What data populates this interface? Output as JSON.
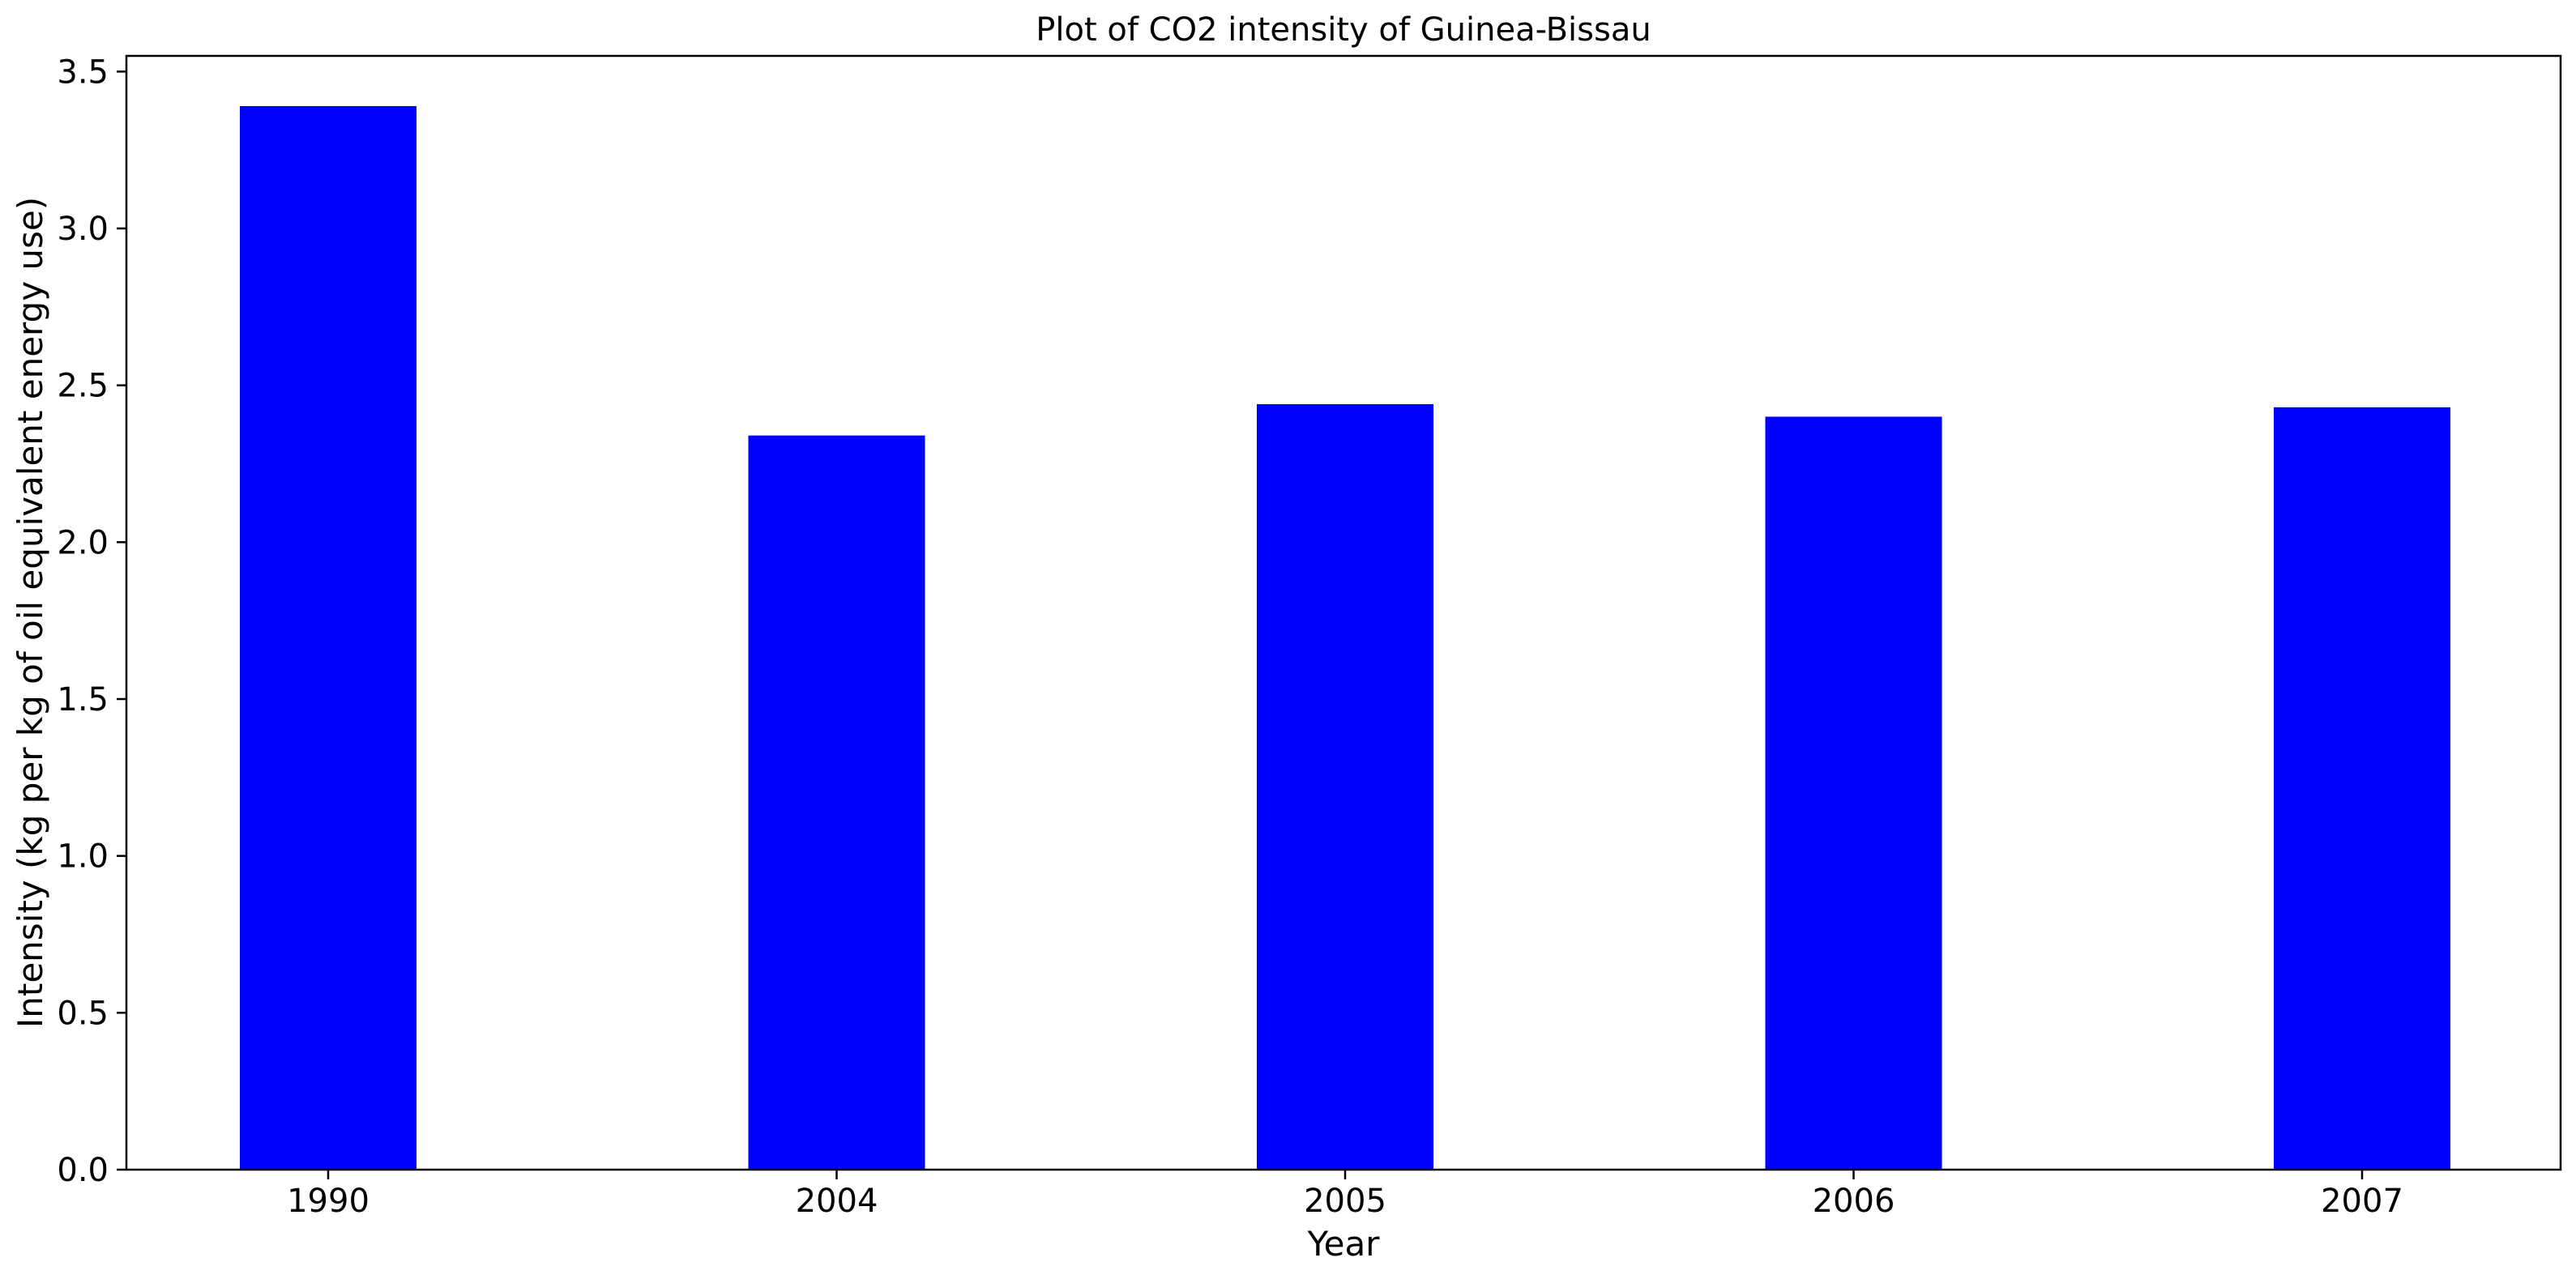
{
  "chart_data": {
    "type": "bar",
    "title": "Plot of CO2 intensity of Guinea-Bissau",
    "xlabel": "Year",
    "ylabel": "Intensity (kg per kg of oil equivalent energy use)",
    "categories": [
      "1990",
      "2004",
      "2005",
      "2006",
      "2007"
    ],
    "values": [
      3.39,
      2.34,
      2.44,
      2.4,
      2.43
    ],
    "ylim": [
      0,
      3.55
    ],
    "yticks": [
      0.0,
      0.5,
      1.0,
      1.5,
      2.0,
      2.5,
      3.0,
      3.5
    ],
    "ytick_labels": [
      "0.0",
      "0.5",
      "1.0",
      "1.5",
      "2.0",
      "2.5",
      "3.0",
      "3.5"
    ],
    "bar_color": "#0000ff",
    "grid": false,
    "legend": "none"
  }
}
